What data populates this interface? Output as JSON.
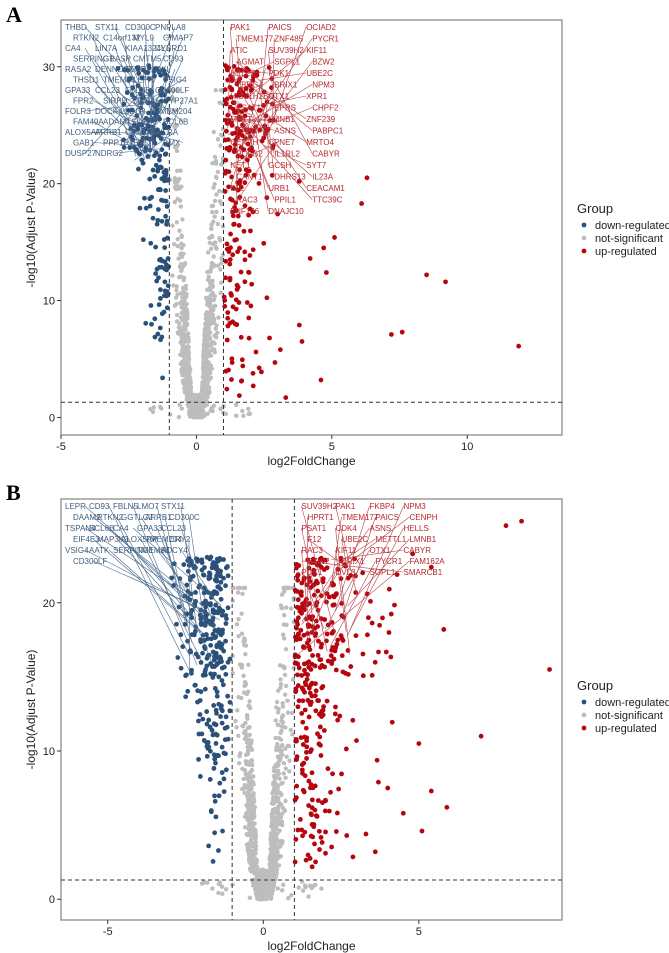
{
  "chart_data": [
    {
      "panel": "A",
      "type": "scatter",
      "subtype": "volcano",
      "title": "",
      "xlabel": "log2FoldChange",
      "ylabel": "-log10(Adjust P-Value)",
      "xlim": [
        -5,
        13.5
      ],
      "ylim": [
        -1.5,
        34
      ],
      "xticks": [
        -5,
        0,
        5,
        10
      ],
      "yticks": [
        0,
        10,
        20,
        30
      ],
      "thresholds": {
        "log2fc": [
          -1,
          1
        ],
        "neglog10p": 1.3
      },
      "grid": false,
      "legend": {
        "title": "Group",
        "position": "right",
        "entries": [
          {
            "label": "down-regulated",
            "color": "#2b5079"
          },
          {
            "label": "not-significant",
            "color": "#bdbdbd"
          },
          {
            "label": "up-regulated",
            "color": "#b5060f"
          }
        ]
      },
      "highlight_points_up": [
        [
          6.3,
          20.5
        ],
        [
          3.8,
          20.2
        ],
        [
          6.1,
          18.3
        ],
        [
          2.6,
          18.8
        ],
        [
          3.0,
          17.4
        ],
        [
          5.1,
          15.4
        ],
        [
          4.7,
          14.5
        ],
        [
          4.2,
          13.6
        ],
        [
          4.8,
          12.4
        ],
        [
          8.5,
          12.2
        ],
        [
          9.2,
          11.6
        ],
        [
          3.8,
          7.9
        ],
        [
          7.2,
          7.1
        ],
        [
          7.6,
          7.3
        ],
        [
          3.9,
          6.5
        ],
        [
          4.6,
          3.2
        ],
        [
          3.3,
          1.7
        ],
        [
          11.9,
          6.1
        ],
        [
          2.7,
          6.8
        ],
        [
          3.1,
          5.8
        ],
        [
          2.2,
          5.6
        ],
        [
          2.9,
          4.7
        ],
        [
          2.4,
          3.9
        ],
        [
          2.1,
          2.7
        ]
      ],
      "labels_down": [
        "THBD",
        "STX11",
        "CD300C",
        "PNPLA8",
        "RTKN2",
        "C14orf132",
        "MYL9",
        "GIMAP7",
        "CA4",
        "LIN7A",
        "KIAA1324L",
        "CYBRD1",
        "SERPING1",
        "GRASP",
        "CMTM5",
        "CD93",
        "RASA2",
        "DENND2A",
        "C5AR1",
        "QKI",
        "THSD1",
        "TMEM88",
        "LEPR",
        "VSIG4",
        "GPA33",
        "CCL23",
        "FBLN5",
        "CD300LF",
        "FPR2",
        "SIRPD",
        "LILRA5",
        "CYP27A1",
        "FOLR3",
        "DOCK4",
        "LDLR",
        "TMEM204",
        "FAM49A",
        "ADAMTSL4",
        "FABP5",
        "BCL6B",
        "ALOX5AP",
        "ARRB1",
        "C2orf40",
        "PILRA",
        "GAB1",
        "PPP1R15A",
        "LMO7",
        "BMX",
        "DUSP27",
        "NDRG2"
      ],
      "labels_up": [
        "PAK1",
        "PAICS",
        "OCIAD2",
        "TMEM177",
        "ZNF485",
        "PYCR1",
        "ATIC",
        "SUV39H2",
        "KIF11",
        "AGMAT",
        "SGPL1",
        "BZW2",
        "HELLS",
        "PDK1",
        "UBE2C",
        "TBRG4",
        "BRIX1",
        "NPM3",
        "HIST1H2BO",
        "OTX1",
        "XPR1",
        "PSAT1",
        "EPRS",
        "CHPF2",
        "METTL1",
        "LMNB1",
        "ZNF239",
        "FANCF",
        "ASNS",
        "PABPC1",
        "CENPH",
        "CPNE7",
        "MRTO4",
        "POLG2",
        "IL1RL2",
        "CABYR",
        "NET1",
        "GCSH",
        "SYT7",
        "CANT1",
        "DHRS13",
        "IL23A",
        "F12",
        "URB1",
        "CEACAM1",
        "RAC3",
        "PPIL1",
        "TTC39C",
        "ZNF146",
        "DNAJC10"
      ]
    },
    {
      "panel": "B",
      "type": "scatter",
      "subtype": "volcano",
      "title": "",
      "xlabel": "log2FoldChange",
      "ylabel": "-log10(Adjust P-Value)",
      "xlim": [
        -6.5,
        9.6
      ],
      "ylim": [
        -1.4,
        27
      ],
      "xticks": [
        -5,
        0,
        5
      ],
      "yticks": [
        0,
        10,
        20
      ],
      "thresholds": {
        "log2fc": [
          -1,
          1
        ],
        "neglog10p": 1.3
      },
      "grid": false,
      "legend": {
        "title": "Group",
        "position": "right",
        "entries": [
          {
            "label": "down-regulated",
            "color": "#2b5079"
          },
          {
            "label": "not-significant",
            "color": "#bdbdbd"
          },
          {
            "label": "up-regulated",
            "color": "#b5060f"
          }
        ]
      },
      "highlight_points_up": [
        [
          8.3,
          25.5
        ],
        [
          7.8,
          25.2
        ],
        [
          5.4,
          22.4
        ],
        [
          4.8,
          23.3
        ],
        [
          4.3,
          21.9
        ],
        [
          5.8,
          18.2
        ],
        [
          9.2,
          15.5
        ],
        [
          7.0,
          11.0
        ],
        [
          5.0,
          10.5
        ],
        [
          5.4,
          7.3
        ],
        [
          5.9,
          6.2
        ],
        [
          4.5,
          5.8
        ],
        [
          5.1,
          4.6
        ],
        [
          3.6,
          3.2
        ],
        [
          4.0,
          7.5
        ],
        [
          3.7,
          7.9
        ],
        [
          3.3,
          4.4
        ],
        [
          2.0,
          3.1
        ]
      ],
      "labels_down": [
        "LEPR",
        "CD93",
        "FBLN5",
        "LMO7",
        "STX11",
        "DAAM2",
        "RTKN2",
        "GGTLC2",
        "ARRB1",
        "CD300C",
        "TSPAN4",
        "BCL6B",
        "CA4",
        "GPA33",
        "CCL23",
        "EIF4E3",
        "MAP3K3",
        "ALOX5AP",
        "TMEM204",
        "CRY2",
        "VSIG4",
        "AATK",
        "SERPING1",
        "TMEM88",
        "ADCY4",
        "CD300LF"
      ],
      "labels_up": [
        "SUV39H2",
        "PAK1",
        "FKBP4",
        "NPM3",
        "HPRT1",
        "TMEM177",
        "PAICS",
        "CENPH",
        "PSAT1",
        "CDK4",
        "ASNS",
        "HELLS",
        "F12",
        "UBE2C",
        "METTL1",
        "LMNB1",
        "RAC3",
        "KIF11",
        "OTX1",
        "CABYR",
        "BZW2",
        "BRIX1",
        "PYCR1",
        "FAM162A",
        "PDK1",
        "DVL3",
        "SGPL1",
        "SMARCB1"
      ]
    }
  ]
}
